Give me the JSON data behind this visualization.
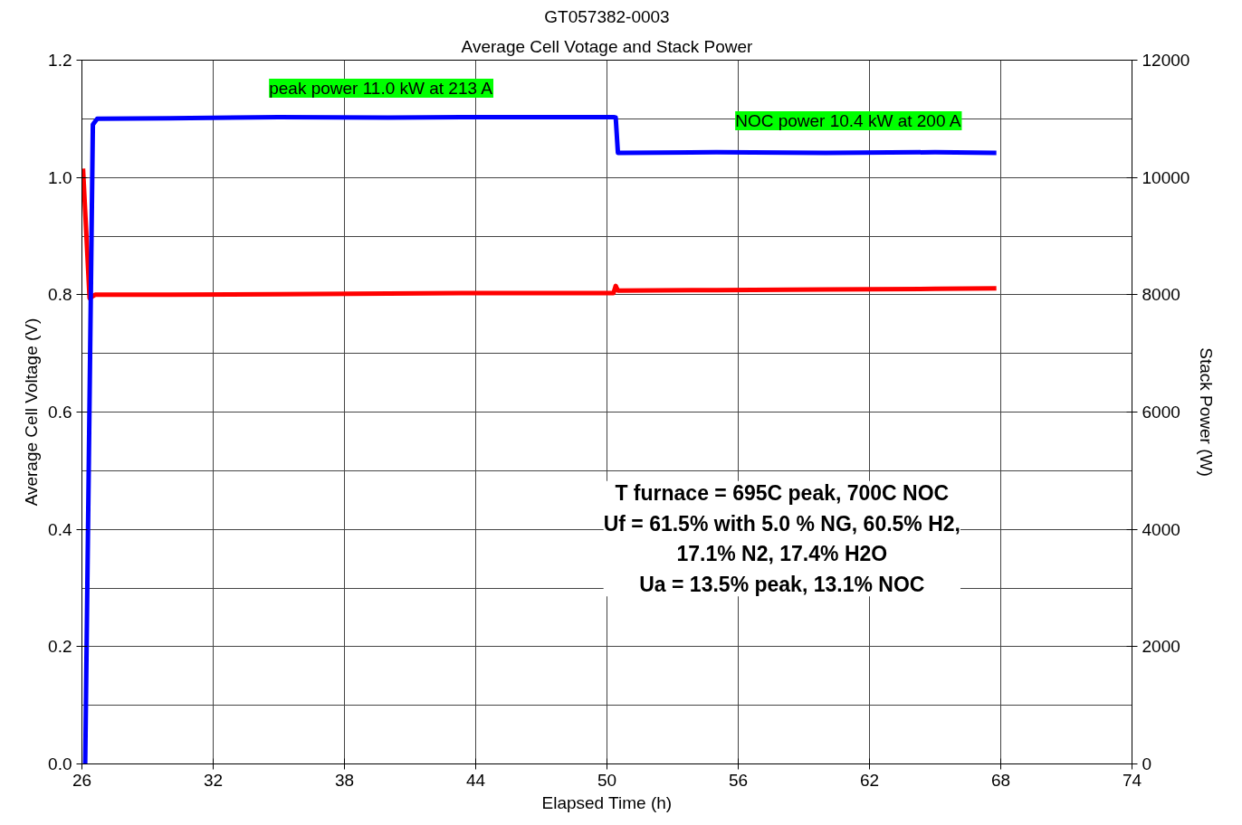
{
  "chart_data": {
    "type": "line",
    "title": "GT057382-0003",
    "subtitle": "Average Cell Votage and Stack Power",
    "xlabel": "Elapsed Time (h)",
    "ylabel": "Average Cell Voltage (V)",
    "y2label": "Stack Power (W)",
    "xlim": [
      26,
      74
    ],
    "xticks": [
      26,
      32,
      38,
      44,
      50,
      56,
      62,
      68,
      74
    ],
    "ylim": [
      0,
      1.2
    ],
    "yticks": [
      {
        "value": 0,
        "label": "0.0"
      },
      0.2,
      0.4,
      0.6,
      0.8,
      {
        "value": 1,
        "label": "1.0"
      },
      {
        "value": 1.2,
        "label": "1.2"
      }
    ],
    "y2lim": [
      0,
      12000
    ],
    "y2ticks": [
      0,
      2000,
      4000,
      6000,
      8000,
      10000,
      12000
    ],
    "grid": true,
    "series": [
      {
        "color": "#ff0000",
        "x": [
          26.05,
          26.35,
          26.6,
          30,
          35,
          40,
          45,
          50.3,
          50.4,
          50.5,
          55,
          60,
          65,
          67.8
        ],
        "values": [
          1.015,
          0.794,
          0.8,
          0.8,
          0.801,
          0.802,
          0.803,
          0.803,
          0.815,
          0.807,
          0.808,
          0.809,
          0.81,
          0.811
        ]
      },
      {
        "color": "#0000ff",
        "axis": "y2",
        "x": [
          26.15,
          26.5,
          26.7,
          30,
          35,
          40,
          45,
          50.3,
          50.4,
          50.5,
          55,
          60,
          65,
          67.8
        ],
        "values": [
          0,
          10900,
          11000,
          11010,
          11030,
          11020,
          11030,
          11030,
          11020,
          10420,
          10430,
          10420,
          10430,
          10420
        ]
      }
    ],
    "annotations": [
      "peak power 11.0 kW at 213 A",
      "NOC power 10.4 kW at 200 A",
      "T furnace = 695C peak, 700C NOC\nUf = 61.5% with 5.0 % NG, 60.5% H2,\n17.1% N2, 17.4% H2O\nUa = 13.5% peak, 13.1% NOC"
    ]
  }
}
